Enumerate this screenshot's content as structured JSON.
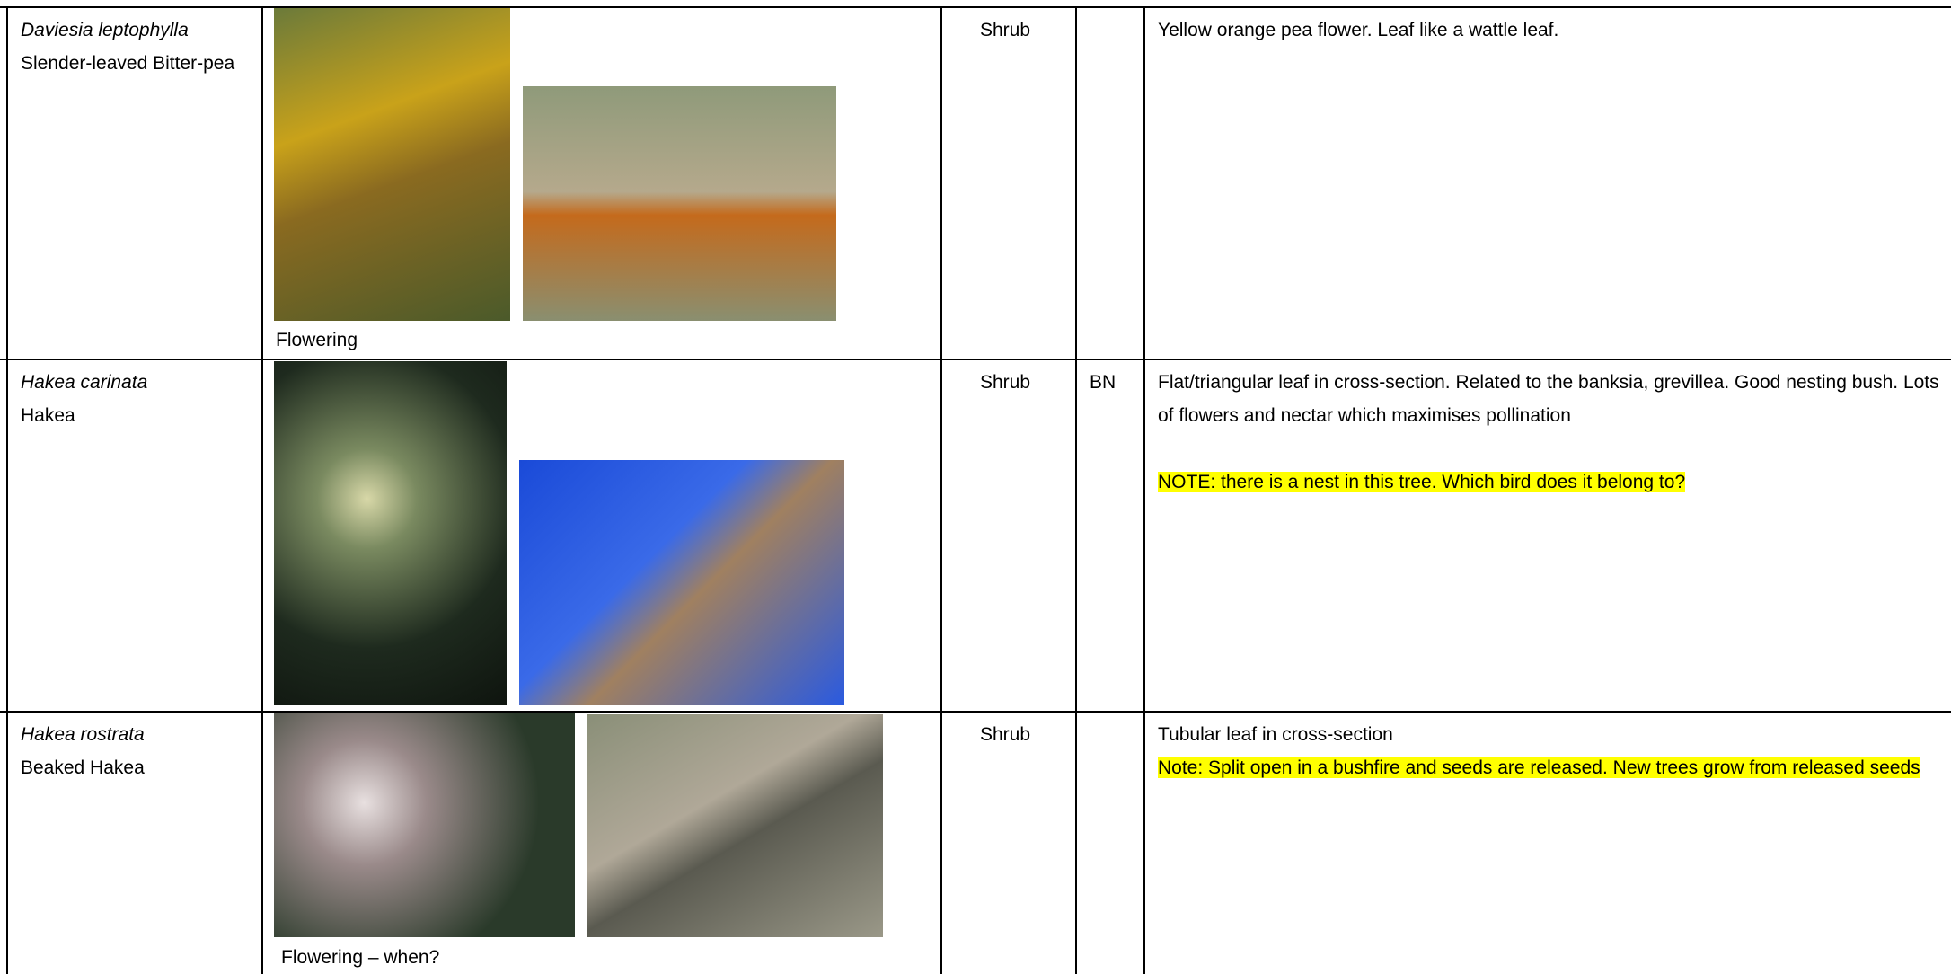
{
  "table": {
    "rows": [
      {
        "scientific": "Daviesia leptophylla",
        "common": "Slender-leaved Bitter-pea",
        "caption": "Flowering",
        "form": "Shrub",
        "notes": [
          "Yellow orange pea flower. Leaf like a wattle leaf."
        ]
      },
      {
        "scientific": "Hakea carinata",
        "common": "Hakea",
        "form": "Shrub",
        "code": "BN",
        "notes": [
          "Flat/triangular leaf in cross-section. Related to the banksia, grevillea. Good nesting bush.  Lots of flowers and nectar which maximises pollination"
        ],
        "highlight": "NOTE: there is a nest in this tree. Which bird does it belong to?"
      },
      {
        "scientific": "Hakea rostrata",
        "common": "Beaked Hakea",
        "caption": "Flowering – when?",
        "form": "Shrub",
        "notes": [
          "Tubular leaf in cross-section"
        ],
        "highlight": "Note: Split open in a bushfire and seeds are released. New trees grow from released seeds"
      }
    ]
  }
}
